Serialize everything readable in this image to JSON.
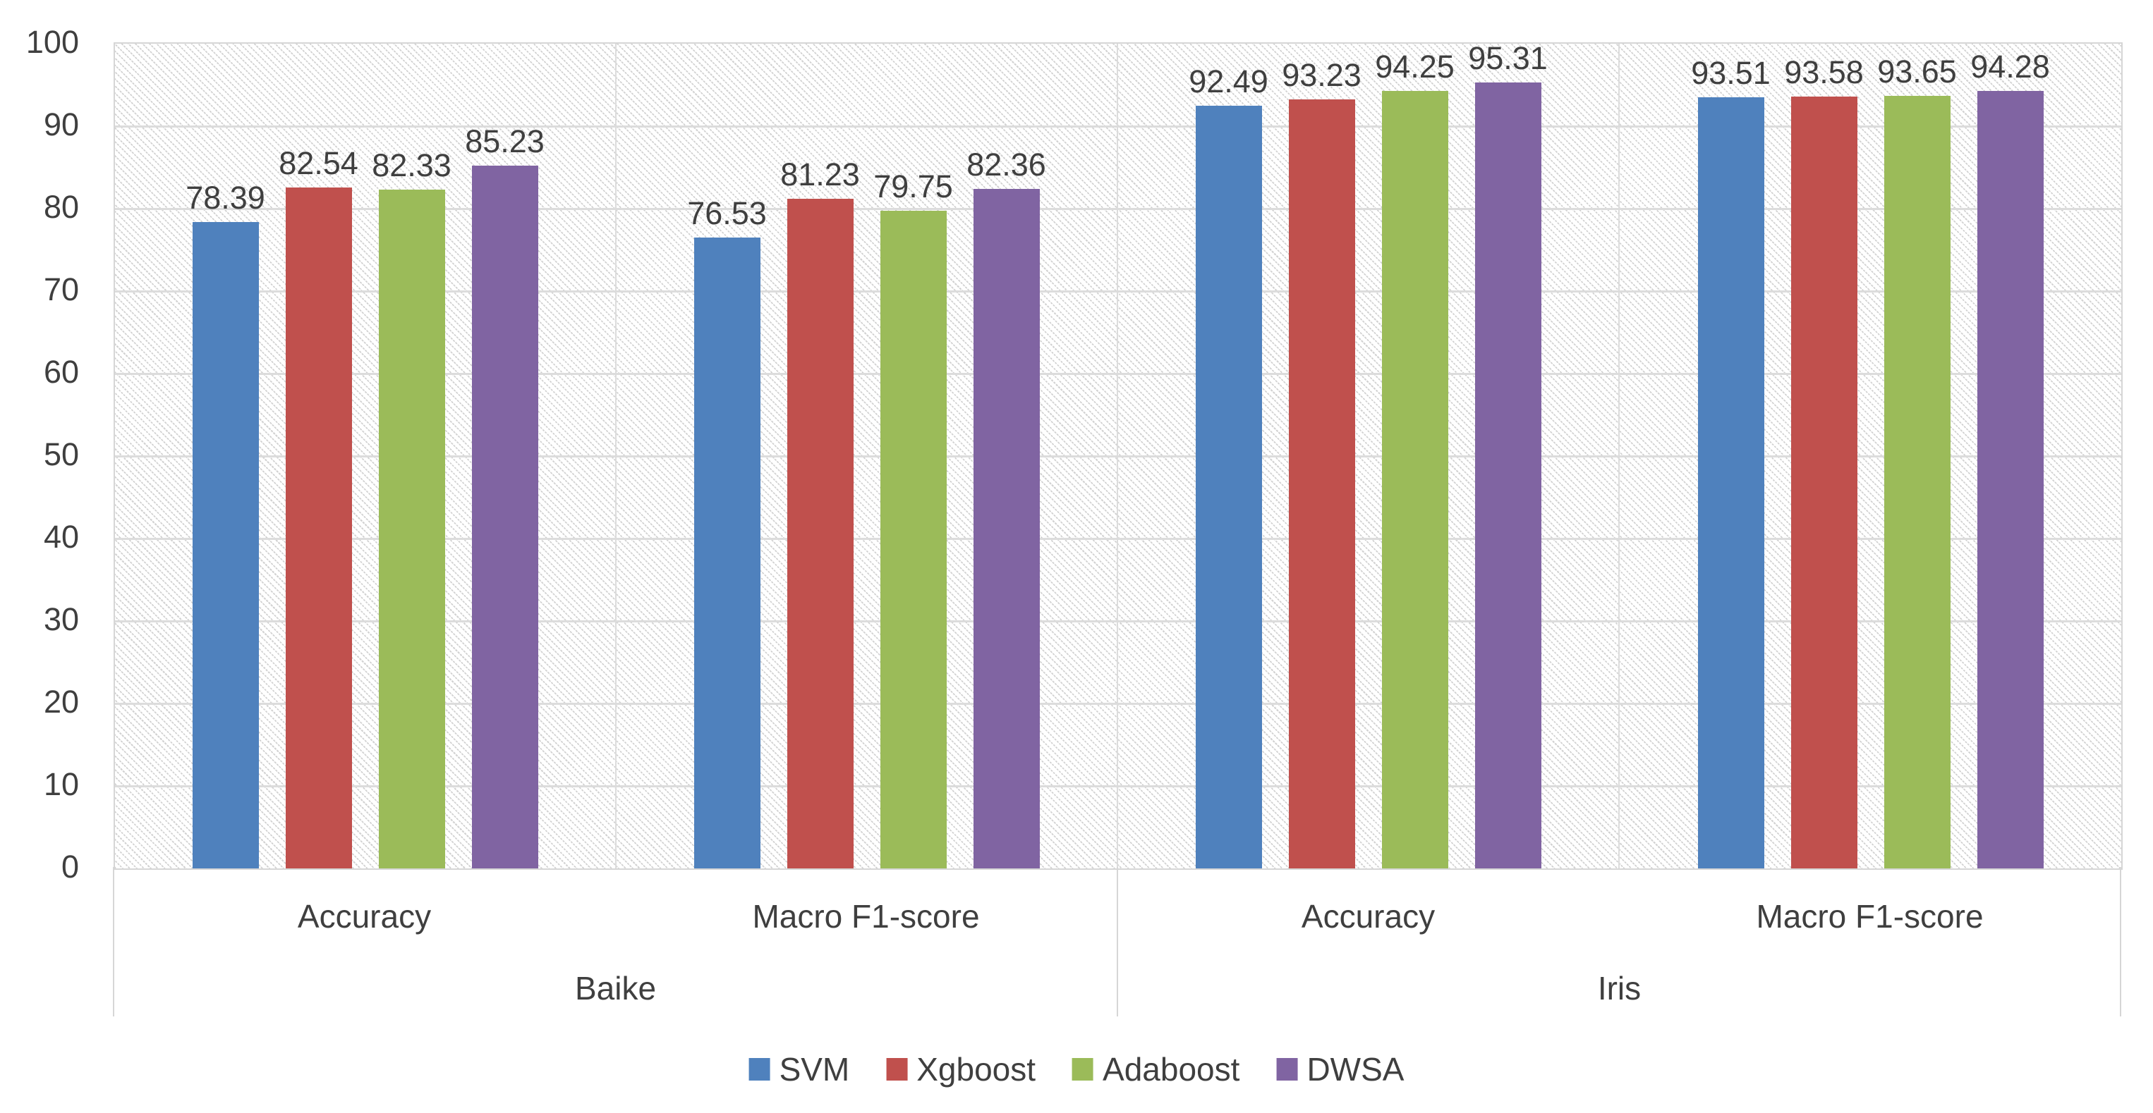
{
  "chart_data": {
    "type": "bar",
    "title": "",
    "xlabel": "",
    "ylabel": "",
    "ylim": [
      0,
      100
    ],
    "yticks": [
      0,
      10,
      20,
      30,
      40,
      50,
      60,
      70,
      80,
      90,
      100
    ],
    "grid": "horizontal",
    "legend_position": "bottom",
    "plot_background": "diagonal-dotted-hatch",
    "datasets": [
      "Baike",
      "Iris"
    ],
    "metric_labels": [
      "Accuracy",
      "Macro F1-score",
      "Accuracy",
      "Macro F1-score"
    ],
    "groups": [
      {
        "metric": "Accuracy",
        "dataset": "Baike"
      },
      {
        "metric": "Macro F1-score",
        "dataset": "Baike"
      },
      {
        "metric": "Accuracy",
        "dataset": "Iris"
      },
      {
        "metric": "Macro F1-score",
        "dataset": "Iris"
      }
    ],
    "series": [
      {
        "name": "SVM",
        "color": "#4F81BD",
        "values": [
          78.39,
          76.53,
          92.49,
          93.51
        ]
      },
      {
        "name": "Xgboost",
        "color": "#C0504D",
        "values": [
          82.54,
          81.23,
          93.23,
          93.58
        ]
      },
      {
        "name": "Adaboost",
        "color": "#9BBB59",
        "values": [
          82.33,
          79.75,
          94.25,
          93.65
        ]
      },
      {
        "name": "DWSA",
        "color": "#8064A2",
        "values": [
          85.23,
          82.36,
          95.31,
          94.28
        ]
      }
    ]
  },
  "style_colors": {
    "gridline": "#dcdcdc",
    "axis_border": "#d6d6d6",
    "text": "#3f3f3f",
    "background": "#ffffff"
  }
}
